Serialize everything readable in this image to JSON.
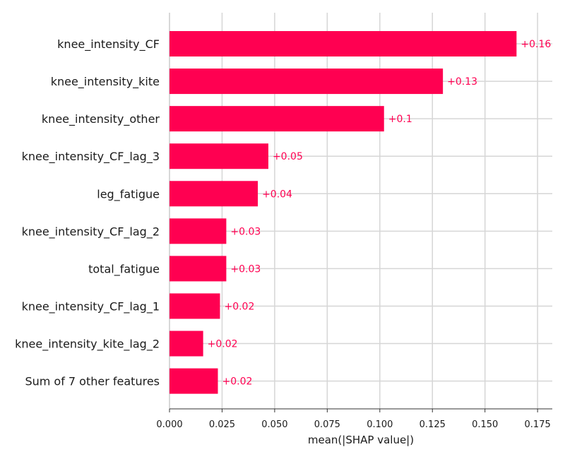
{
  "chart_data": {
    "type": "bar",
    "orientation": "horizontal",
    "categories": [
      "knee_intensity_CF",
      "knee_intensity_kite",
      "knee_intensity_other",
      "knee_intensity_CF_lag_3",
      "leg_fatigue",
      "knee_intensity_CF_lag_2",
      "total_fatigue",
      "knee_intensity_CF_lag_1",
      "knee_intensity_kite_lag_2",
      "Sum of 7 other features"
    ],
    "values": [
      0.165,
      0.13,
      0.102,
      0.047,
      0.042,
      0.027,
      0.027,
      0.024,
      0.016,
      0.023
    ],
    "data_labels": [
      "+0.16",
      "+0.13",
      "+0.1",
      "+0.05",
      "+0.04",
      "+0.03",
      "+0.03",
      "+0.02",
      "+0.02",
      "+0.02"
    ],
    "xlabel": "mean(|SHAP value|)",
    "ylabel": "",
    "xlim": [
      0,
      0.182
    ],
    "x_ticks": [
      "0.000",
      "0.025",
      "0.050",
      "0.075",
      "0.100",
      "0.125",
      "0.150",
      "0.175"
    ],
    "x_tick_values": [
      0,
      0.025,
      0.05,
      0.075,
      0.1,
      0.125,
      0.15,
      0.175
    ],
    "grid": true,
    "bar_color": "#ff0051",
    "label_color": "#ff0051"
  }
}
